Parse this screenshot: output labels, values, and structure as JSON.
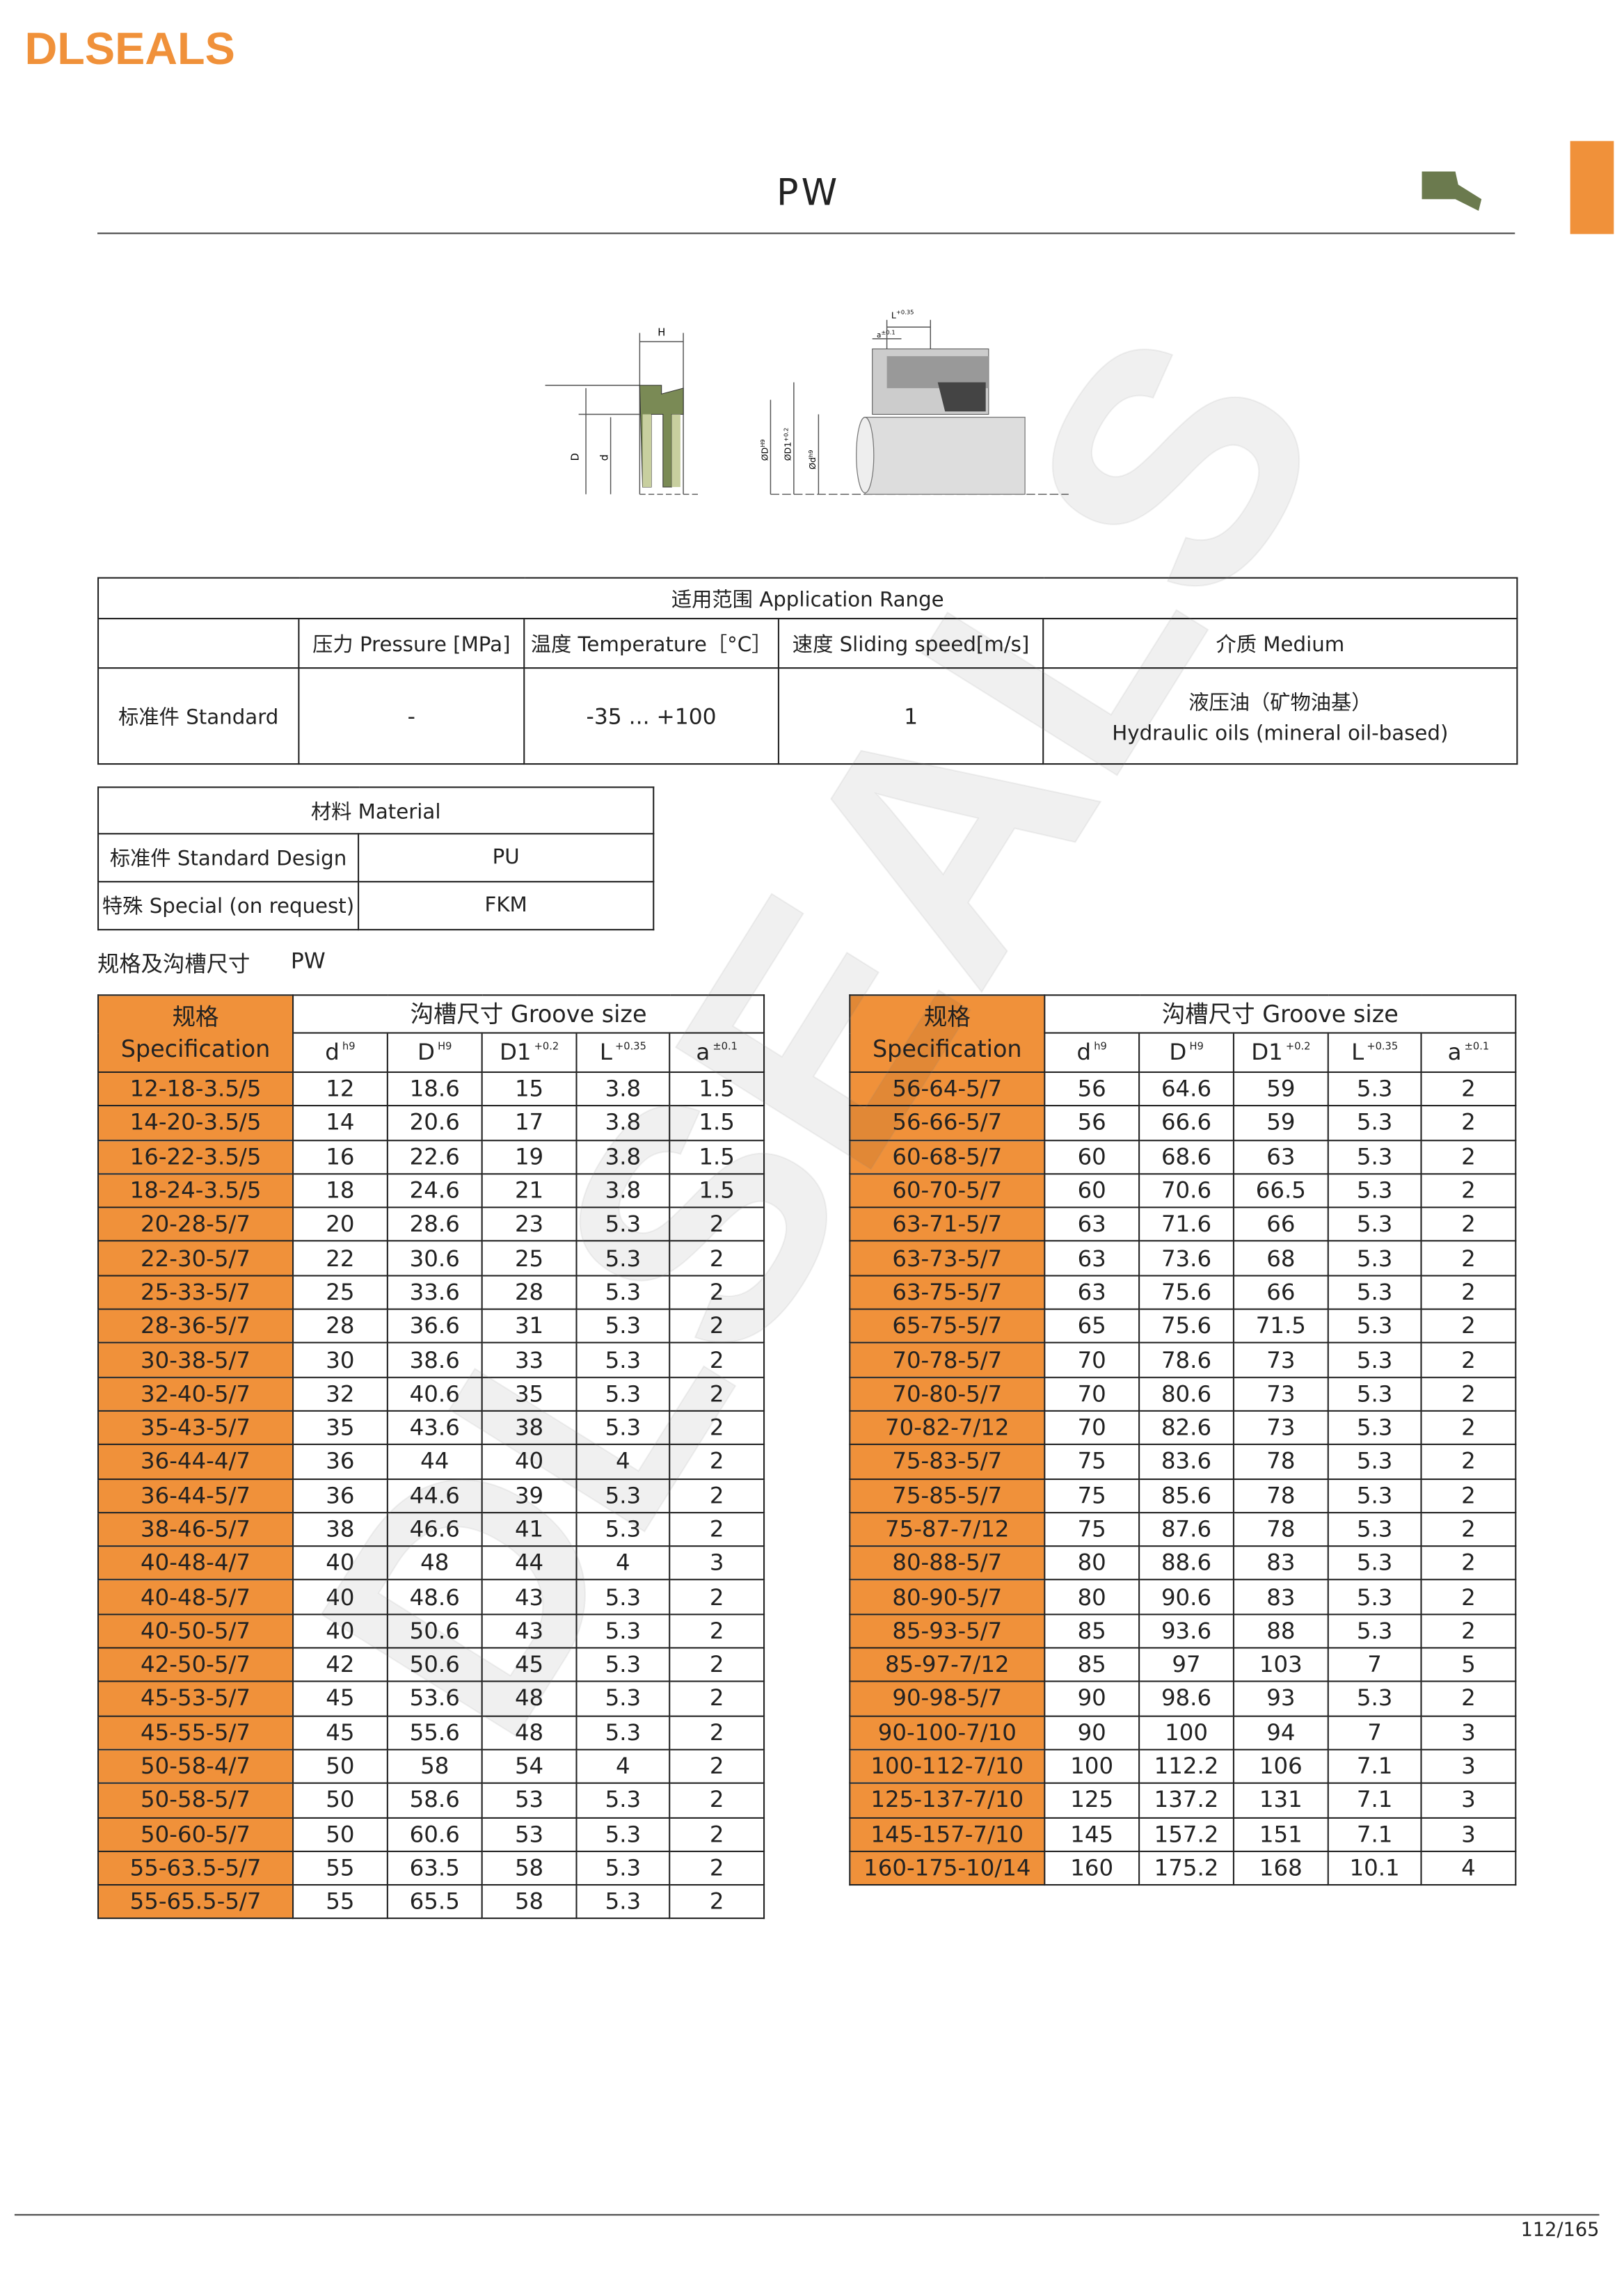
{
  "header": {
    "logo": "DLSEALS",
    "title": "PW",
    "watermark": "DLSEALS",
    "page_number": "112/165"
  },
  "diagram": {
    "labels": [
      {
        "text": "H",
        "sup": ""
      },
      {
        "text": "D",
        "sup": ""
      },
      {
        "text": "d",
        "sup": ""
      },
      {
        "text": "L",
        "sup": "+0.35"
      },
      {
        "text": "a",
        "sup": "±0.1"
      },
      {
        "text": "ØD",
        "sup": "H9"
      },
      {
        "text": "ØD1",
        "sup": "+0.2"
      },
      {
        "text": "Ød",
        "sup": "h9"
      }
    ]
  },
  "application_table": {
    "title": "适用范围 Application Range",
    "columns": [
      "压力 Pressure [MPa]",
      "温度 Temperature［°C］",
      "速度 Sliding speed[m/s]",
      "介质 Medium"
    ],
    "row_label": "标准件 Standard",
    "values": [
      "-",
      "-35 ... +100",
      "1"
    ],
    "medium": [
      "液压油（矿物油基）",
      "Hydraulic oils (mineral oil-based)"
    ]
  },
  "material_table": {
    "title": "材料 Material",
    "rows": [
      [
        "标准件 Standard Design",
        "PU"
      ],
      [
        "特殊 Special (on request)",
        "FKM"
      ]
    ]
  },
  "section": {
    "heading": "规格及沟槽尺寸",
    "model": "PW"
  },
  "spec_tables": {
    "spec_header": [
      "规格",
      "Specification"
    ],
    "groove_header": "沟槽尺寸 Groove size",
    "columns": [
      {
        "name": "d",
        "sup": "h9"
      },
      {
        "name": "D",
        "sup": "H9"
      },
      {
        "name": "D1",
        "sup": "+0.2"
      },
      {
        "name": "L",
        "sup": "+0.35"
      },
      {
        "name": "a",
        "sup": "±0.1"
      }
    ],
    "left": [
      [
        "12-18-3.5/5",
        "12",
        "18.6",
        "15",
        "3.8",
        "1.5"
      ],
      [
        "14-20-3.5/5",
        "14",
        "20.6",
        "17",
        "3.8",
        "1.5"
      ],
      [
        "16-22-3.5/5",
        "16",
        "22.6",
        "19",
        "3.8",
        "1.5"
      ],
      [
        "18-24-3.5/5",
        "18",
        "24.6",
        "21",
        "3.8",
        "1.5"
      ],
      [
        "20-28-5/7",
        "20",
        "28.6",
        "23",
        "5.3",
        "2"
      ],
      [
        "22-30-5/7",
        "22",
        "30.6",
        "25",
        "5.3",
        "2"
      ],
      [
        "25-33-5/7",
        "25",
        "33.6",
        "28",
        "5.3",
        "2"
      ],
      [
        "28-36-5/7",
        "28",
        "36.6",
        "31",
        "5.3",
        "2"
      ],
      [
        "30-38-5/7",
        "30",
        "38.6",
        "33",
        "5.3",
        "2"
      ],
      [
        "32-40-5/7",
        "32",
        "40.6",
        "35",
        "5.3",
        "2"
      ],
      [
        "35-43-5/7",
        "35",
        "43.6",
        "38",
        "5.3",
        "2"
      ],
      [
        "36-44-4/7",
        "36",
        "44",
        "40",
        "4",
        "2"
      ],
      [
        "36-44-5/7",
        "36",
        "44.6",
        "39",
        "5.3",
        "2"
      ],
      [
        "38-46-5/7",
        "38",
        "46.6",
        "41",
        "5.3",
        "2"
      ],
      [
        "40-48-4/7",
        "40",
        "48",
        "44",
        "4",
        "3"
      ],
      [
        "40-48-5/7",
        "40",
        "48.6",
        "43",
        "5.3",
        "2"
      ],
      [
        "40-50-5/7",
        "40",
        "50.6",
        "43",
        "5.3",
        "2"
      ],
      [
        "42-50-5/7",
        "42",
        "50.6",
        "45",
        "5.3",
        "2"
      ],
      [
        "45-53-5/7",
        "45",
        "53.6",
        "48",
        "5.3",
        "2"
      ],
      [
        "45-55-5/7",
        "45",
        "55.6",
        "48",
        "5.3",
        "2"
      ],
      [
        "50-58-4/7",
        "50",
        "58",
        "54",
        "4",
        "2"
      ],
      [
        "50-58-5/7",
        "50",
        "58.6",
        "53",
        "5.3",
        "2"
      ],
      [
        "50-60-5/7",
        "50",
        "60.6",
        "53",
        "5.3",
        "2"
      ],
      [
        "55-63.5-5/7",
        "55",
        "63.5",
        "58",
        "5.3",
        "2"
      ],
      [
        "55-65.5-5/7",
        "55",
        "65.5",
        "58",
        "5.3",
        "2"
      ]
    ],
    "right": [
      [
        "56-64-5/7",
        "56",
        "64.6",
        "59",
        "5.3",
        "2"
      ],
      [
        "56-66-5/7",
        "56",
        "66.6",
        "59",
        "5.3",
        "2"
      ],
      [
        "60-68-5/7",
        "60",
        "68.6",
        "63",
        "5.3",
        "2"
      ],
      [
        "60-70-5/7",
        "60",
        "70.6",
        "66.5",
        "5.3",
        "2"
      ],
      [
        "63-71-5/7",
        "63",
        "71.6",
        "66",
        "5.3",
        "2"
      ],
      [
        "63-73-5/7",
        "63",
        "73.6",
        "68",
        "5.3",
        "2"
      ],
      [
        "63-75-5/7",
        "63",
        "75.6",
        "66",
        "5.3",
        "2"
      ],
      [
        "65-75-5/7",
        "65",
        "75.6",
        "71.5",
        "5.3",
        "2"
      ],
      [
        "70-78-5/7",
        "70",
        "78.6",
        "73",
        "5.3",
        "2"
      ],
      [
        "70-80-5/7",
        "70",
        "80.6",
        "73",
        "5.3",
        "2"
      ],
      [
        "70-82-7/12",
        "70",
        "82.6",
        "73",
        "5.3",
        "2"
      ],
      [
        "75-83-5/7",
        "75",
        "83.6",
        "78",
        "5.3",
        "2"
      ],
      [
        "75-85-5/7",
        "75",
        "85.6",
        "78",
        "5.3",
        "2"
      ],
      [
        "75-87-7/12",
        "75",
        "87.6",
        "78",
        "5.3",
        "2"
      ],
      [
        "80-88-5/7",
        "80",
        "88.6",
        "83",
        "5.3",
        "2"
      ],
      [
        "80-90-5/7",
        "80",
        "90.6",
        "83",
        "5.3",
        "2"
      ],
      [
        "85-93-5/7",
        "85",
        "93.6",
        "88",
        "5.3",
        "2"
      ],
      [
        "85-97-7/12",
        "85",
        "97",
        "103",
        "7",
        "5"
      ],
      [
        "90-98-5/7",
        "90",
        "98.6",
        "93",
        "5.3",
        "2"
      ],
      [
        "90-100-7/10",
        "90",
        "100",
        "94",
        "7",
        "3"
      ],
      [
        "100-112-7/10",
        "100",
        "112.2",
        "106",
        "7.1",
        "3"
      ],
      [
        "125-137-7/10",
        "125",
        "137.2",
        "131",
        "7.1",
        "3"
      ],
      [
        "145-157-7/10",
        "145",
        "157.2",
        "151",
        "7.1",
        "3"
      ],
      [
        "160-175-10/14",
        "160",
        "175.2",
        "168",
        "10.1",
        "4"
      ]
    ]
  }
}
